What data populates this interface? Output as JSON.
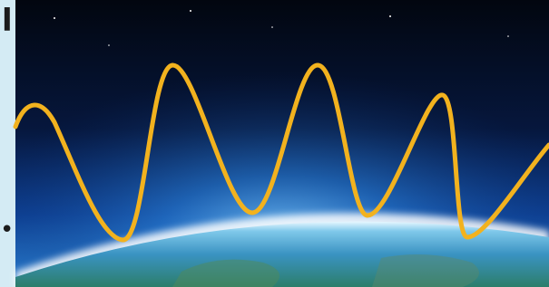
{
  "slide": {
    "heading_fragment": "l",
    "bullet": "•"
  }
}
